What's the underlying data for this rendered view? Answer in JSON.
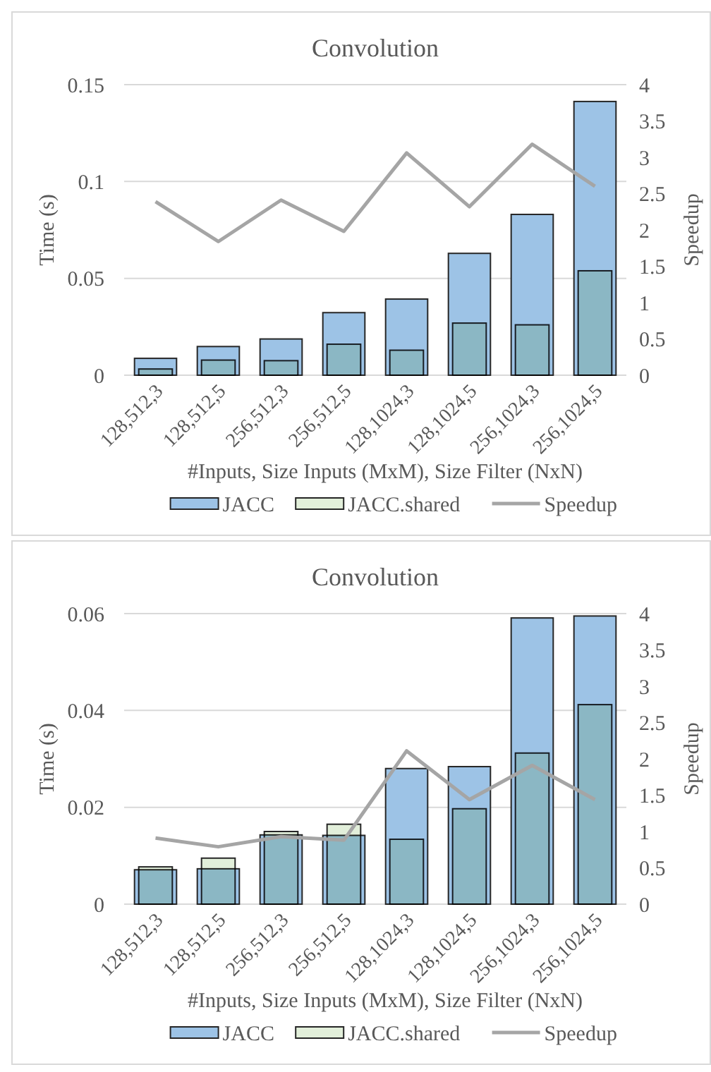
{
  "chart_data": [
    {
      "type": "bar",
      "title": "Convolution",
      "xlabel": "#Inputs, Size Inputs (MxM), Size Filter (NxN)",
      "ylabel": "Time (s)",
      "y2label": "Speedup",
      "categories": [
        "128,512,3",
        "128,512,5",
        "256,512,3",
        "256,512,5",
        "128,1024,3",
        "128,1024,5",
        "256,1024,3",
        "256,1024,5"
      ],
      "series": [
        {
          "name": "JACC",
          "color": "#9dc3e6",
          "values": [
            0.0087,
            0.0148,
            0.0187,
            0.0323,
            0.0393,
            0.0629,
            0.083,
            0.1413
          ]
        },
        {
          "name": "JACC.shared",
          "color": "#e2efda",
          "values": [
            0.0032,
            0.0078,
            0.0075,
            0.016,
            0.0129,
            0.0269,
            0.026,
            0.0539
          ]
        },
        {
          "name": "Speedup",
          "type": "line",
          "axis": "y2",
          "color": "#a5a5a5",
          "values": [
            2.39,
            1.84,
            2.41,
            1.98,
            3.06,
            2.32,
            3.18,
            2.6
          ]
        }
      ],
      "ylim": [
        0,
        0.15
      ],
      "yticks": [
        0,
        0.05,
        0.1,
        0.15
      ],
      "y2lim": [
        0,
        4
      ],
      "y2ticks": [
        0,
        0.5,
        1,
        1.5,
        2,
        2.5,
        3,
        3.5,
        4
      ],
      "grid": "y",
      "legend": "bottom"
    },
    {
      "type": "bar",
      "title": "Convolution",
      "xlabel": "#Inputs, Size Inputs (MxM), Size Filter (NxN)",
      "ylabel": "Time (s)",
      "y2label": "Speedup",
      "categories": [
        "128,512,3",
        "128,512,5",
        "256,512,3",
        "256,512,5",
        "128,1024,3",
        "128,1024,5",
        "256,1024,3",
        "256,1024,5"
      ],
      "series": [
        {
          "name": "JACC",
          "color": "#9dc3e6",
          "values": [
            0.0071,
            0.0073,
            0.0143,
            0.0142,
            0.028,
            0.0284,
            0.0591,
            0.0595
          ]
        },
        {
          "name": "JACC.shared",
          "color": "#e2efda",
          "values": [
            0.0077,
            0.0095,
            0.015,
            0.0165,
            0.0134,
            0.0197,
            0.0312,
            0.0412
          ]
        },
        {
          "name": "Speedup",
          "type": "line",
          "axis": "y2",
          "color": "#a5a5a5",
          "values": [
            0.91,
            0.79,
            0.93,
            0.88,
            2.11,
            1.44,
            1.91,
            1.44
          ]
        }
      ],
      "ylim": [
        0,
        0.06
      ],
      "yticks": [
        0,
        0.02,
        0.04,
        0.06
      ],
      "y2lim": [
        0,
        4
      ],
      "y2ticks": [
        0,
        0.5,
        1,
        1.5,
        2,
        2.5,
        3,
        3.5,
        4
      ],
      "grid": "y",
      "legend": "bottom"
    }
  ]
}
